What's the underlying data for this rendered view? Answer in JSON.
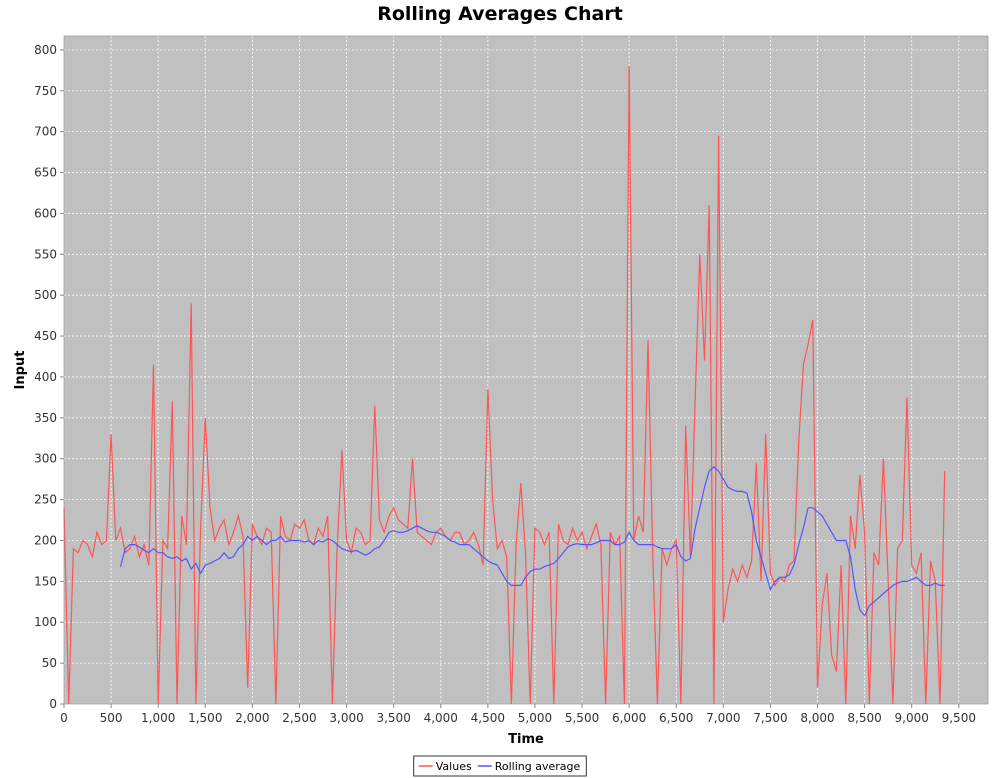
{
  "chart_data": {
    "type": "line",
    "title": "Rolling Averages Chart",
    "x_label": "Time",
    "y_label": "Input",
    "grid": true,
    "legend": "bottom",
    "background": "#c0c0c0",
    "xlim": [
      0,
      9810
    ],
    "ylim": [
      0,
      817
    ],
    "xticks": [
      0,
      500,
      {
        "value": 1000,
        "label": "1,000"
      },
      {
        "value": 1500,
        "label": "1,500"
      },
      {
        "value": 2000,
        "label": "2,000"
      },
      {
        "value": 2500,
        "label": "2,500"
      },
      {
        "value": 3000,
        "label": "3,000"
      },
      {
        "value": 3500,
        "label": "3,500"
      },
      {
        "value": 4000,
        "label": "4,000"
      },
      {
        "value": 4500,
        "label": "4,500"
      },
      {
        "value": 5000,
        "label": "5,000"
      },
      {
        "value": 5500,
        "label": "5,500"
      },
      {
        "value": 6000,
        "label": "6,000"
      },
      {
        "value": 6500,
        "label": "6,500"
      },
      {
        "value": 7000,
        "label": "7,000"
      },
      {
        "value": 7500,
        "label": "7,500"
      },
      {
        "value": 8000,
        "label": "8,000"
      },
      {
        "value": 8500,
        "label": "8,500"
      },
      {
        "value": 9000,
        "label": "9,000"
      },
      {
        "value": 9500,
        "label": "9,500"
      }
    ],
    "yticks": [
      0,
      50,
      100,
      150,
      200,
      250,
      300,
      350,
      400,
      450,
      500,
      550,
      600,
      650,
      700,
      750,
      800
    ],
    "x": [
      0,
      50,
      100,
      150,
      200,
      250,
      300,
      350,
      400,
      450,
      500,
      550,
      600,
      650,
      700,
      750,
      800,
      850,
      900,
      950,
      1000,
      1050,
      1100,
      1150,
      1200,
      1250,
      1300,
      1350,
      1400,
      1450,
      1500,
      1550,
      1600,
      1650,
      1700,
      1750,
      1800,
      1850,
      1900,
      1950,
      2000,
      2050,
      2100,
      2150,
      2200,
      2250,
      2300,
      2350,
      2400,
      2450,
      2500,
      2550,
      2600,
      2650,
      2700,
      2750,
      2800,
      2850,
      2900,
      2950,
      3000,
      3050,
      3100,
      3150,
      3200,
      3250,
      3300,
      3350,
      3400,
      3450,
      3500,
      3550,
      3600,
      3650,
      3700,
      3750,
      3800,
      3850,
      3900,
      3950,
      4000,
      4050,
      4100,
      4150,
      4200,
      4250,
      4300,
      4350,
      4400,
      4450,
      4500,
      4550,
      4600,
      4650,
      4700,
      4750,
      4800,
      4850,
      4900,
      4950,
      5000,
      5050,
      5100,
      5150,
      5200,
      5250,
      5300,
      5350,
      5400,
      5450,
      5500,
      5550,
      5600,
      5650,
      5700,
      5750,
      5800,
      5850,
      5900,
      5950,
      6000,
      6050,
      6100,
      6150,
      6200,
      6250,
      6300,
      6350,
      6400,
      6450,
      6500,
      6550,
      6600,
      6650,
      6700,
      6750,
      6800,
      6850,
      6900,
      6950,
      7000,
      7050,
      7100,
      7150,
      7200,
      7250,
      7300,
      7350,
      7400,
      7450,
      7500,
      7550,
      7600,
      7650,
      7700,
      7750,
      7800,
      7850,
      7900,
      7950,
      8000,
      8050,
      8100,
      8150,
      8200,
      8250,
      8300,
      8350,
      8400,
      8450,
      8500,
      8550,
      8600,
      8650,
      8700,
      8750,
      8800,
      8850,
      8900,
      8950,
      9000,
      9050,
      9100,
      9150,
      9200,
      9250,
      9300,
      9350
    ],
    "series": [
      {
        "name": "Values",
        "color": "#ff5555",
        "values": [
          240,
          0,
          190,
          185,
          200,
          195,
          180,
          210,
          195,
          200,
          330,
          200,
          215,
          185,
          190,
          205,
          180,
          195,
          170,
          415,
          0,
          200,
          190,
          370,
          0,
          230,
          195,
          490,
          0,
          215,
          350,
          240,
          200,
          215,
          225,
          195,
          210,
          230,
          205,
          20,
          220,
          205,
          195,
          215,
          210,
          0,
          230,
          205,
          200,
          220,
          215,
          225,
          200,
          195,
          215,
          205,
          230,
          0,
          190,
          310,
          200,
          185,
          215,
          210,
          195,
          200,
          365,
          225,
          210,
          230,
          240,
          225,
          220,
          215,
          300,
          210,
          205,
          200,
          195,
          210,
          215,
          205,
          200,
          210,
          210,
          195,
          200,
          210,
          195,
          170,
          385,
          250,
          190,
          200,
          180,
          0,
          195,
          270,
          185,
          0,
          215,
          210,
          195,
          210,
          0,
          220,
          200,
          195,
          215,
          200,
          210,
          190,
          205,
          220,
          195,
          0,
          210,
          195,
          205,
          0,
          780,
          200,
          230,
          210,
          445,
          185,
          0,
          190,
          170,
          190,
          200,
          0,
          340,
          180,
          370,
          550,
          420,
          610,
          0,
          695,
          100,
          140,
          165,
          150,
          170,
          155,
          175,
          295,
          150,
          330,
          160,
          145,
          155,
          150,
          170,
          175,
          320,
          415,
          440,
          470,
          20,
          120,
          160,
          60,
          40,
          170,
          0,
          230,
          190,
          280,
          210,
          0,
          185,
          170,
          300,
          150,
          0,
          190,
          200,
          375,
          170,
          160,
          185,
          0,
          175,
          150,
          0,
          285
        ]
      },
      {
        "name": "Rolling average",
        "color": "#5555ff",
        "values": [
          null,
          null,
          null,
          null,
          null,
          null,
          null,
          null,
          null,
          null,
          null,
          null,
          168,
          190,
          195,
          195,
          192,
          188,
          185,
          190,
          185,
          185,
          180,
          178,
          180,
          175,
          178,
          165,
          172,
          160,
          170,
          172,
          175,
          178,
          185,
          178,
          180,
          190,
          195,
          205,
          200,
          205,
          200,
          195,
          200,
          200,
          205,
          198,
          200,
          200,
          200,
          198,
          200,
          195,
          200,
          198,
          202,
          200,
          195,
          190,
          188,
          186,
          188,
          185,
          182,
          185,
          190,
          192,
          200,
          210,
          212,
          210,
          210,
          212,
          215,
          218,
          215,
          212,
          210,
          210,
          208,
          205,
          200,
          198,
          195,
          195,
          195,
          190,
          185,
          180,
          175,
          172,
          170,
          160,
          150,
          145,
          145,
          145,
          155,
          162,
          165,
          165,
          168,
          170,
          172,
          178,
          185,
          192,
          195,
          196,
          195,
          195,
          195,
          197,
          200,
          200,
          200,
          195,
          195,
          198,
          210,
          200,
          195,
          195,
          195,
          195,
          192,
          190,
          190,
          190,
          195,
          180,
          175,
          178,
          215,
          240,
          265,
          285,
          290,
          285,
          275,
          265,
          262,
          260,
          260,
          258,
          235,
          200,
          180,
          160,
          140,
          150,
          155,
          155,
          158,
          170,
          195,
          215,
          240,
          240,
          235,
          230,
          220,
          210,
          200,
          200,
          200,
          180,
          140,
          115,
          108,
          120,
          125,
          130,
          135,
          140,
          145,
          148,
          150,
          150,
          152,
          155,
          150,
          145,
          145,
          148,
          145,
          145
        ]
      }
    ]
  }
}
